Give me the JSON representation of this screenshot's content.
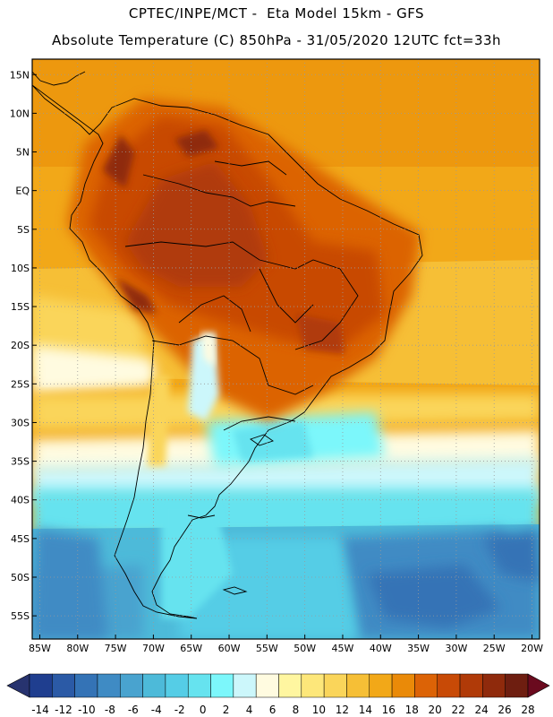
{
  "header": {
    "line1": "CPTEC/INPE/MCT -  Eta Model 15km - GFS",
    "line2": "Absolute Temperature (C) 850hPa - 31/05/2020 12UTC fct=33h"
  },
  "map": {
    "lon_range": [
      -86,
      -19
    ],
    "lat_range": [
      -58,
      17
    ],
    "lat_ticks": [
      "15N",
      "10N",
      "5N",
      "EQ",
      "5S",
      "10S",
      "15S",
      "20S",
      "25S",
      "30S",
      "35S",
      "40S",
      "45S",
      "50S",
      "55S"
    ],
    "lat_tick_values": [
      15,
      10,
      5,
      0,
      -5,
      -10,
      -15,
      -20,
      -25,
      -30,
      -35,
      -40,
      -45,
      -50,
      -55
    ],
    "lon_ticks": [
      "85W",
      "80W",
      "75W",
      "70W",
      "65W",
      "60W",
      "55W",
      "50W",
      "45W",
      "40W",
      "35W",
      "30W",
      "25W",
      "20W"
    ],
    "lon_tick_values": [
      -85,
      -80,
      -75,
      -70,
      -65,
      -60,
      -55,
      -50,
      -45,
      -40,
      -35,
      -30,
      -25,
      -20
    ],
    "grid": "dotted"
  },
  "colorbar": {
    "labels": [
      "-14",
      "-12",
      "-10",
      "-8",
      "-6",
      "-4",
      "-2",
      "0",
      "2",
      "4",
      "6",
      "8",
      "10",
      "12",
      "14",
      "16",
      "18",
      "20",
      "22",
      "24",
      "26",
      "28"
    ],
    "colors": [
      "#1f3e8f",
      "#2b5aa6",
      "#3473b6",
      "#3f8bc4",
      "#49a3cf",
      "#4dbad9",
      "#55cde6",
      "#66e3ef",
      "#7cf7fb",
      "#ccf7fb",
      "#fffbe0",
      "#fff6a0",
      "#fde77a",
      "#fad55a",
      "#f6bf36",
      "#f2a818",
      "#ea8a08",
      "#dc6306",
      "#c84a06",
      "#b03a08",
      "#8f2a0c",
      "#6e1e10"
    ],
    "under_color": "#27336f",
    "over_color": "#6a0a1e"
  }
}
